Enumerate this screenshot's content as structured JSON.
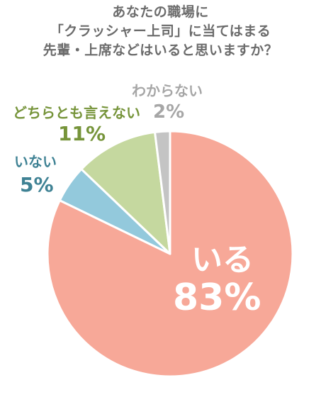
{
  "chart_data": {
    "type": "pie",
    "title_lines": [
      "あなたの職場に",
      "「クラッシャー上司」に当てはまる",
      "先輩・上席などはいると思いますか？"
    ],
    "categories": [
      "いる",
      "いない",
      "どちらとも言えない",
      "わからない"
    ],
    "values": [
      83,
      5,
      11,
      2
    ],
    "percent_labels": [
      "83%",
      "5%",
      "11%",
      "2%"
    ],
    "colors": [
      "#f7a898",
      "#93c9dc",
      "#c5d89f",
      "#c4c4c4"
    ],
    "label_colors": [
      "#ffffff",
      "#3f8294",
      "#76943a",
      "#a6a6a6"
    ]
  }
}
